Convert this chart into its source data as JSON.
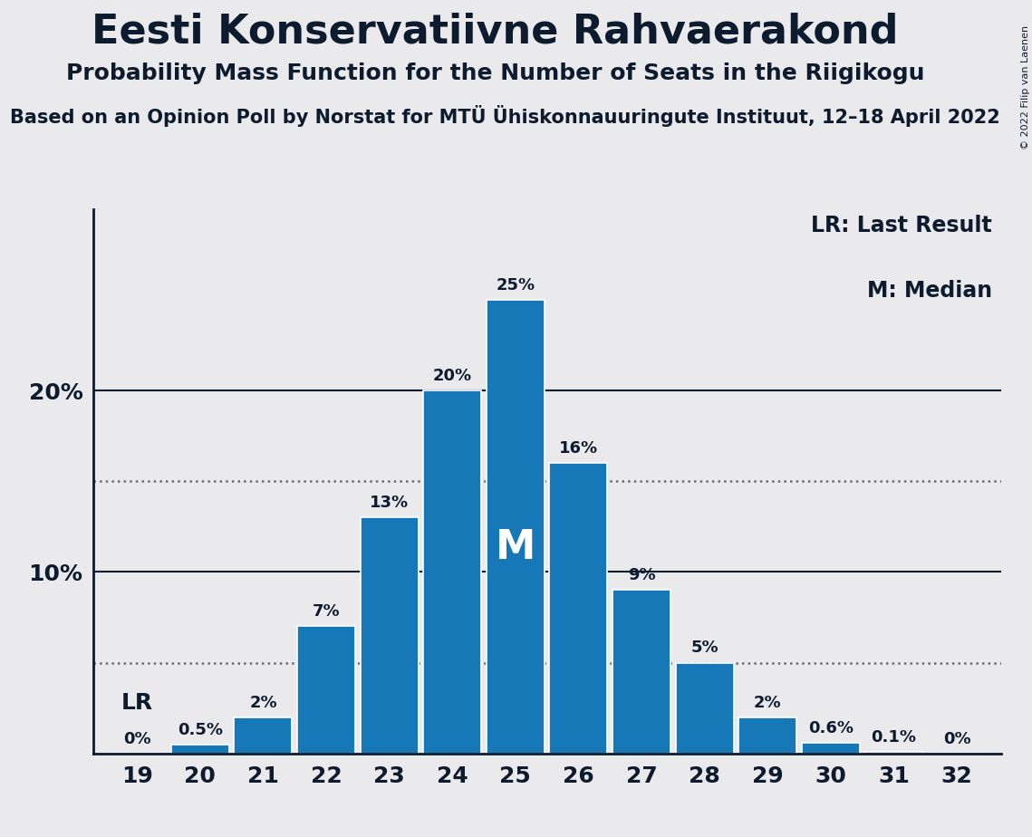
{
  "title": "Eesti Konservatiivne Rahvaerakond",
  "subtitle": "Probability Mass Function for the Number of Seats in the Riigikogu",
  "source_line": "Based on an Opinion Poll by Norstat for MTÜ Ühiskonnauuringute Instituut, 12–18 April 2022",
  "copyright_text": "© 2022 Filip van Laenen",
  "seats": [
    19,
    20,
    21,
    22,
    23,
    24,
    25,
    26,
    27,
    28,
    29,
    30,
    31,
    32
  ],
  "probabilities": [
    0.0,
    0.5,
    2.0,
    7.0,
    13.0,
    20.0,
    25.0,
    16.0,
    9.0,
    5.0,
    2.0,
    0.6,
    0.1,
    0.0
  ],
  "bar_color": "#1778b8",
  "background_color": "#eaeaec",
  "text_color": "#0d1b2e",
  "yticks": [
    10,
    20
  ],
  "dotted_lines": [
    5.0,
    15.0
  ],
  "median_seat": 25,
  "lr_seat": 19,
  "legend_lr": "LR: Last Result",
  "legend_m": "M: Median",
  "bar_labels": [
    "0%",
    "0.5%",
    "2%",
    "7%",
    "13%",
    "20%",
    "25%",
    "16%",
    "9%",
    "5%",
    "2%",
    "0.6%",
    "0.1%",
    "0%"
  ]
}
